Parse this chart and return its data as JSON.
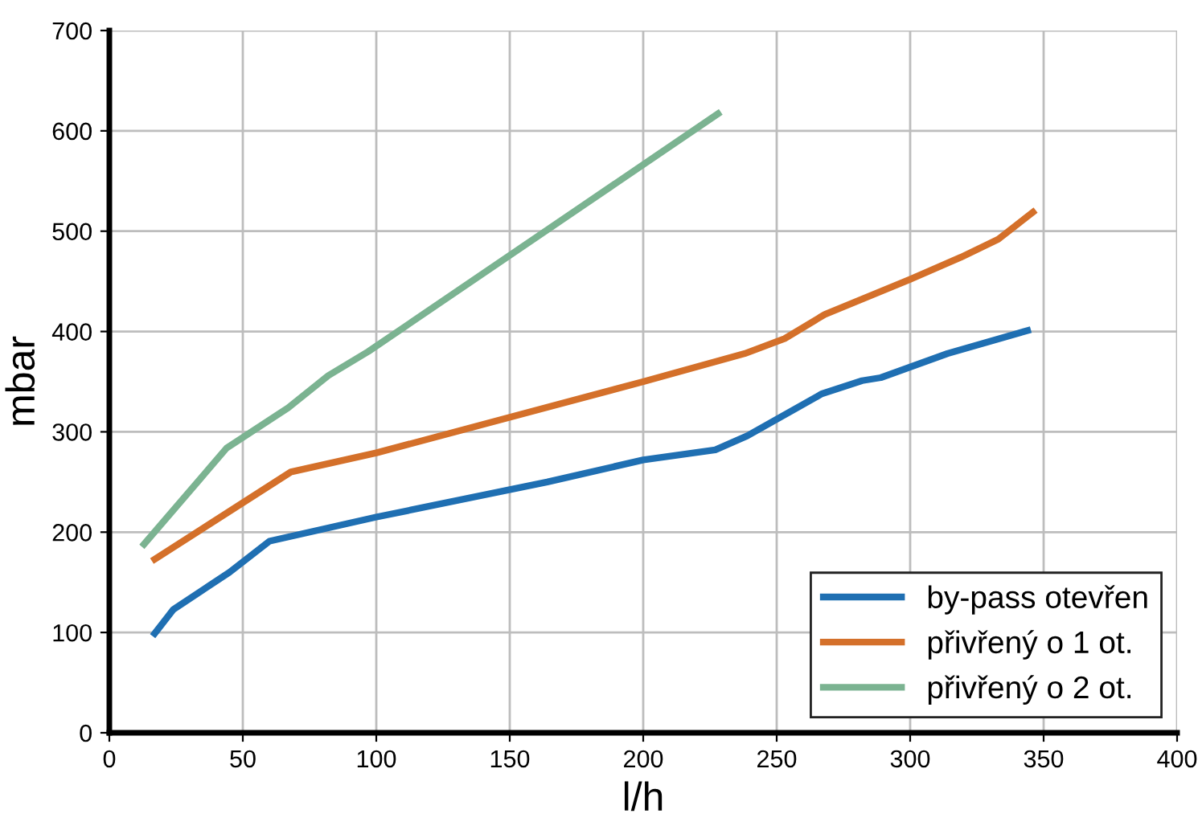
{
  "chart_data": {
    "type": "line",
    "xlabel": "l/h",
    "ylabel": "mbar",
    "xlim": [
      0,
      400
    ],
    "ylim": [
      0,
      700
    ],
    "xticks": [
      0,
      50,
      100,
      150,
      200,
      250,
      300,
      350,
      400
    ],
    "yticks": [
      0,
      100,
      200,
      300,
      400,
      500,
      600,
      700
    ],
    "grid": true,
    "legend": "bottom right",
    "marker": "none",
    "line_style": "solid",
    "series": [
      {
        "name": "by-pass otevřen",
        "color": "#1f6fb2",
        "x": [
          17,
          24,
          45,
          60,
          100,
          164,
          200,
          227,
          239,
          267,
          282,
          289,
          314,
          344
        ],
        "values": [
          99,
          123,
          160,
          191,
          215,
          250,
          272,
          282,
          296,
          338,
          351,
          354,
          378,
          401
        ]
      },
      {
        "name": "přivřený o 1 ot.",
        "color": "#d4702a",
        "x": [
          17,
          68,
          100,
          200,
          238,
          253,
          268,
          300,
          319,
          333,
          346
        ],
        "values": [
          173,
          260,
          279,
          350,
          378,
          393,
          417,
          452,
          474,
          492,
          519
        ]
      },
      {
        "name": "přivřený o 2 ot.",
        "color": "#7bb391",
        "x": [
          13,
          44,
          67,
          82,
          97,
          228
        ],
        "values": [
          188,
          284,
          324,
          356,
          380,
          617
        ]
      }
    ]
  }
}
